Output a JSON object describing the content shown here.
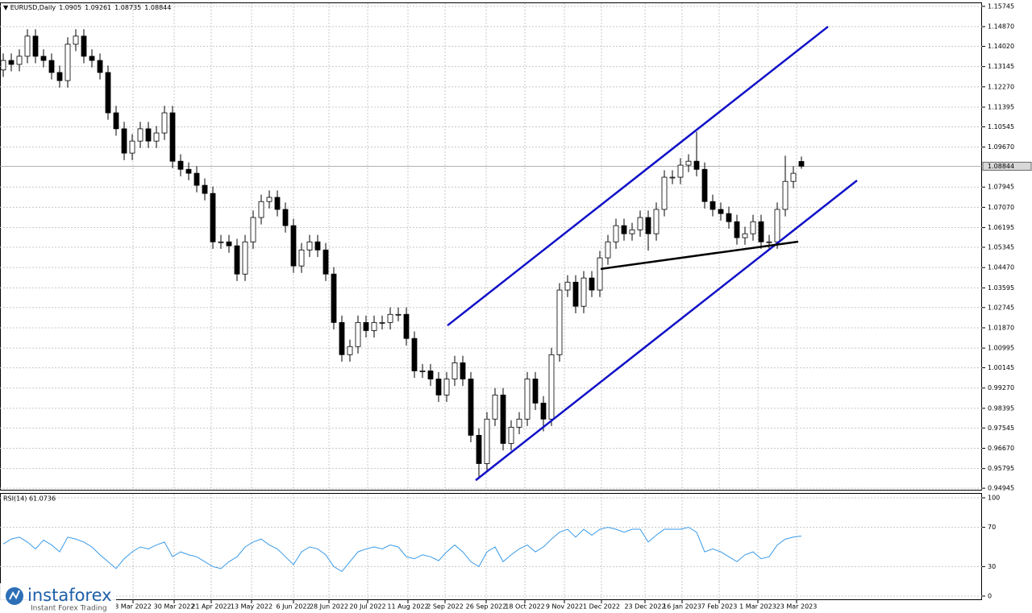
{
  "chart_data": [
    {
      "type": "candlestick",
      "title": "EURUSD,Daily",
      "x": [
        0,
        1,
        2,
        3,
        4,
        5,
        6,
        7,
        8,
        9,
        10,
        11,
        12,
        13,
        14,
        15,
        16,
        17,
        18,
        19,
        20,
        21,
        22,
        23,
        24,
        25,
        26,
        27,
        28,
        29,
        30,
        31,
        32,
        33,
        34,
        35,
        36,
        37,
        38,
        39,
        40,
        41,
        42,
        43,
        44,
        45,
        46,
        47,
        48,
        49,
        50,
        51,
        52,
        53,
        54,
        55,
        56,
        57,
        58,
        59,
        60,
        61,
        62,
        63,
        64,
        65,
        66,
        67,
        68,
        69,
        70,
        71,
        72,
        73,
        74,
        75,
        76,
        77,
        78,
        79,
        80,
        81,
        82,
        83,
        84,
        85,
        86,
        87,
        88,
        89,
        90,
        91,
        92,
        93,
        94,
        95,
        96,
        97,
        98,
        99
      ],
      "open": [
        1.13,
        1.1341,
        1.1324,
        1.1359,
        1.1446,
        1.1359,
        1.1341,
        1.1289,
        1.1254,
        1.1411,
        1.1446,
        1.1359,
        1.1341,
        1.1289,
        1.1115,
        1.1046,
        1.0941,
        1.0993,
        1.1046,
        1.0993,
        1.1028,
        1.1115,
        1.0906,
        1.0871,
        1.0854,
        1.0802,
        1.0767,
        1.0558,
        1.0558,
        1.0541,
        1.0419,
        1.0558,
        1.0663,
        1.0732,
        1.075,
        1.0698,
        1.0628,
        1.0454,
        1.0523,
        1.0558,
        1.0523,
        1.0419,
        1.021,
        1.0071,
        1.0106,
        1.021,
        1.0175,
        1.021,
        1.021,
        1.0245,
        1.0245,
        1.0141,
        1.0001,
        1.0001,
        0.9966,
        0.9897,
        0.9966,
        1.0036,
        0.9966,
        0.9723,
        0.9601,
        0.9793,
        0.9897,
        0.9688,
        0.9758,
        0.9793,
        0.9966,
        0.9862,
        0.9793,
        1.0071,
        1.035,
        1.0384,
        1.028,
        1.0402,
        1.035,
        1.0489,
        1.0558,
        1.0628,
        1.0593,
        1.061,
        1.0663,
        1.0593,
        1.0698,
        1.0837,
        1.0837,
        1.0889,
        1.0906,
        1.0871,
        1.0732,
        1.0698,
        1.068,
        1.0645,
        1.0576,
        1.0593,
        1.0645,
        1.0558,
        1.0558,
        1.0698,
        1.0819,
        1.0905
      ],
      "high": [
        1.1371,
        1.1371,
        1.1389,
        1.1476,
        1.1476,
        1.1389,
        1.1371,
        1.1319,
        1.1441,
        1.1476,
        1.1476,
        1.1389,
        1.1371,
        1.1319,
        1.1145,
        1.1076,
        1.1023,
        1.1076,
        1.1076,
        1.1058,
        1.1145,
        1.1145,
        1.0936,
        1.0901,
        1.0884,
        1.0832,
        1.0797,
        1.0588,
        1.0588,
        1.0571,
        1.0588,
        1.0693,
        1.0762,
        1.078,
        1.078,
        1.0728,
        1.0658,
        1.0553,
        1.0588,
        1.0588,
        1.0553,
        1.0449,
        1.024,
        1.0136,
        1.024,
        1.024,
        1.024,
        1.024,
        1.0275,
        1.0275,
        1.0275,
        1.0171,
        1.0031,
        1.0031,
        0.9996,
        0.9996,
        1.0066,
        1.0066,
        0.9996,
        0.9753,
        0.9823,
        0.9927,
        0.9927,
        0.9788,
        0.9823,
        0.9996,
        0.9996,
        0.9892,
        1.0101,
        1.038,
        1.0414,
        1.0414,
        1.0432,
        1.0432,
        1.0519,
        1.0588,
        1.0658,
        1.0658,
        1.064,
        1.0693,
        1.0693,
        1.0728,
        1.0867,
        1.0867,
        1.0919,
        1.0936,
        1.1033,
        1.0901,
        1.0762,
        1.0728,
        1.071,
        1.0675,
        1.0623,
        1.0675,
        1.0675,
        1.0588,
        1.0728,
        1.093,
        1.0884,
        1.09261
      ],
      "low": [
        1.127,
        1.1294,
        1.1294,
        1.1329,
        1.1329,
        1.1311,
        1.1259,
        1.1224,
        1.1224,
        1.1381,
        1.1329,
        1.1311,
        1.1259,
        1.1085,
        1.1016,
        1.0911,
        1.0911,
        1.0963,
        1.0963,
        1.0963,
        1.0998,
        1.0876,
        1.0841,
        1.0824,
        1.0772,
        1.0737,
        1.0528,
        1.0528,
        1.0511,
        1.0389,
        1.0389,
        1.0528,
        1.0633,
        1.0702,
        1.0668,
        1.0598,
        1.0424,
        1.0424,
        1.0493,
        1.0493,
        1.0389,
        1.018,
        1.0041,
        1.0041,
        1.0076,
        1.0145,
        1.0145,
        1.018,
        1.018,
        1.0215,
        1.0111,
        0.9971,
        0.9971,
        0.9936,
        0.9867,
        0.9867,
        0.9936,
        0.9936,
        0.9693,
        0.9536,
        0.9571,
        0.9763,
        0.9658,
        0.9658,
        0.9728,
        0.9763,
        0.9832,
        0.974,
        0.9763,
        1.0041,
        1.032,
        1.025,
        1.025,
        1.032,
        1.032,
        1.0459,
        1.0528,
        1.0563,
        1.0563,
        1.058,
        1.052,
        1.0563,
        1.0668,
        1.0807,
        1.0807,
        1.0859,
        1.0841,
        1.0702,
        1.0668,
        1.065,
        1.0615,
        1.0546,
        1.0546,
        1.0563,
        1.0528,
        1.0528,
        1.0528,
        1.0668,
        1.0789,
        1.08735
      ],
      "close": [
        1.1341,
        1.1324,
        1.1359,
        1.1446,
        1.1359,
        1.1341,
        1.1289,
        1.1254,
        1.1411,
        1.1446,
        1.1359,
        1.1341,
        1.1289,
        1.1115,
        1.1046,
        1.0941,
        1.0993,
        1.1046,
        1.0993,
        1.1028,
        1.1115,
        1.0906,
        1.0871,
        1.0854,
        1.0802,
        1.0767,
        1.0558,
        1.0558,
        1.0541,
        1.0419,
        1.0558,
        1.0663,
        1.0732,
        1.075,
        1.0698,
        1.0628,
        1.0454,
        1.0523,
        1.0558,
        1.0523,
        1.0419,
        1.021,
        1.0071,
        1.0106,
        1.021,
        1.0175,
        1.021,
        1.021,
        1.0245,
        1.0245,
        1.0141,
        1.0001,
        1.0001,
        0.9966,
        0.9897,
        0.9966,
        1.0036,
        0.9966,
        0.9723,
        0.9601,
        0.9793,
        0.9897,
        0.9688,
        0.9758,
        0.9793,
        0.9966,
        0.9862,
        0.9793,
        1.0071,
        1.035,
        1.0384,
        1.028,
        1.0402,
        1.035,
        1.0489,
        1.0558,
        1.0628,
        1.0593,
        1.061,
        1.0663,
        1.0593,
        1.0698,
        1.0837,
        1.0837,
        1.0889,
        1.0906,
        1.0871,
        1.0732,
        1.0698,
        1.068,
        1.0645,
        1.0576,
        1.0593,
        1.0645,
        1.0558,
        1.0558,
        1.0698,
        1.0819,
        1.0854,
        1.08844
      ],
      "up_color": "#ffffff",
      "down_color": "#000000",
      "wick_color": "#000000",
      "last_price": 1.08844,
      "xlim": [
        -0.4,
        121.4
      ],
      "xticks": [
        {
          "value": 16.1,
          "label": "8 Mar 2022"
        },
        {
          "value": 21.2,
          "label": "30 Mar 2022"
        },
        {
          "value": 25.8,
          "label": "21 Apr 2022"
        },
        {
          "value": 30.8,
          "label": "13 May 2022"
        },
        {
          "value": 36,
          "label": "6 Jun 2022"
        },
        {
          "value": 40.4,
          "label": "28 Jun 2022"
        },
        {
          "value": 45.2,
          "label": "20 Jul 2022"
        },
        {
          "value": 50.2,
          "label": "11 Aug 2022"
        },
        {
          "value": 54.8,
          "label": "2 Sep 2022"
        },
        {
          "value": 59.9,
          "label": "26 Sep 2022"
        },
        {
          "value": 64.7,
          "label": "18 Oct 2022"
        },
        {
          "value": 69.6,
          "label": "9 Nov 2022"
        },
        {
          "value": 74.2,
          "label": "1 Dec 2022"
        },
        {
          "value": 79.6,
          "label": "23 Dec 2022"
        },
        {
          "value": 84.2,
          "label": "16 Jan 2023"
        },
        {
          "value": 88.8,
          "label": "7 Feb 2023"
        },
        {
          "value": 93.6,
          "label": "1 Mar 2023"
        },
        {
          "value": 98.4,
          "label": "23 Mar 2023"
        }
      ],
      "ylim": [
        0.9488,
        1.1588
      ],
      "yticks": [
        1.15745,
        {
          "value": 1.1487,
          "label": "1.14870"
        },
        {
          "value": 1.1402,
          "label": "1.14020"
        },
        1.13145,
        {
          "value": 1.1227,
          "label": "1.12270"
        },
        1.11395,
        1.10545,
        {
          "value": 1.0967,
          "label": "1.09670"
        },
        1.07945,
        {
          "value": 1.0707,
          "label": "1.07070"
        },
        1.06195,
        1.05345,
        {
          "value": 1.0447,
          "label": "1.04470"
        },
        1.03595,
        1.02745,
        {
          "value": 1.0187,
          "label": "1.01870"
        },
        1.00995,
        1.00145,
        {
          "value": 0.9927,
          "label": "0.99270"
        },
        0.98395,
        0.97545,
        {
          "value": 0.9667,
          "label": "0.96670"
        },
        0.95795,
        0.94945
      ],
      "grid": true,
      "trendlines": [
        {
          "color": "#1010c8",
          "x": [
            55.1,
            102.3
          ],
          "y": [
            1.0197,
            1.1487
          ]
        },
        {
          "color": "#1010c8",
          "x": [
            58.6,
            105.9
          ],
          "y": [
            0.9529,
            1.0823
          ]
        },
        {
          "color": "#000000",
          "x": [
            74.1,
            98.6
          ],
          "y": [
            1.0441,
            1.0559
          ]
        }
      ]
    },
    {
      "type": "line",
      "title": "RSI(14) 61.0736",
      "color": "#3a9be8",
      "values": [
        53,
        58,
        60,
        55,
        48,
        57,
        52,
        45,
        60,
        58,
        55,
        50,
        42,
        35,
        28,
        38,
        45,
        50,
        48,
        52,
        55,
        40,
        45,
        42,
        40,
        35,
        30,
        28,
        35,
        40,
        50,
        55,
        58,
        52,
        48,
        40,
        32,
        45,
        50,
        48,
        42,
        30,
        25,
        35,
        45,
        48,
        50,
        48,
        52,
        50,
        40,
        38,
        42,
        40,
        36,
        45,
        52,
        45,
        35,
        30,
        45,
        50,
        35,
        42,
        48,
        52,
        45,
        50,
        58,
        65,
        68,
        60,
        68,
        62,
        68,
        70,
        68,
        65,
        68,
        68,
        55,
        62,
        68,
        68,
        68,
        70,
        65,
        45,
        48,
        45,
        40,
        35,
        42,
        45,
        38,
        40,
        52,
        58,
        60,
        61.0736
      ],
      "ylim": [
        0,
        100
      ],
      "yticks": [
        100,
        70,
        30,
        0
      ],
      "grid": true
    }
  ],
  "branding": {
    "logo": "instaforex",
    "tagline": "Instant Forex Trading"
  }
}
